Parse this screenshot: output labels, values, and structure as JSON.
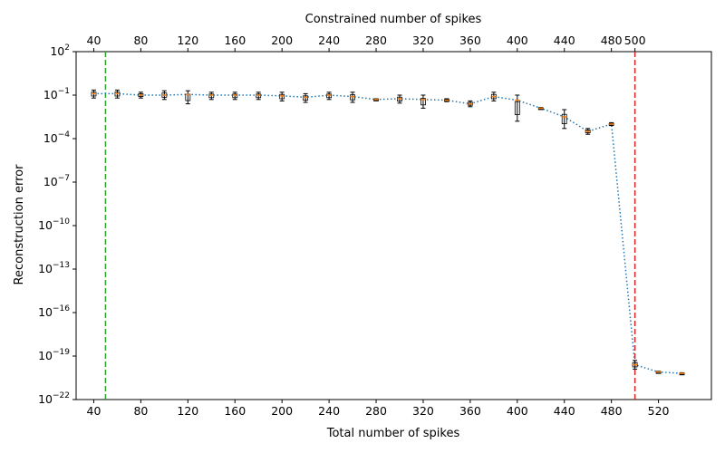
{
  "chart_data": {
    "type": "line",
    "xlabel": "Total number of spikes",
    "x2label": "Constrained number of spikes",
    "ylabel": "Reconstruction error",
    "xlim": [
      25,
      565
    ],
    "ylim_exponent": [
      -22,
      2
    ],
    "y_scale": "log",
    "bottom_ticks": [
      "40",
      "80",
      "120",
      "160",
      "200",
      "240",
      "280",
      "320",
      "360",
      "400",
      "440",
      "480",
      "520"
    ],
    "bottom_tick_values": [
      40,
      80,
      120,
      160,
      200,
      240,
      280,
      320,
      360,
      400,
      440,
      480,
      520
    ],
    "top_ticks": [
      "40",
      "80",
      "120",
      "160",
      "200",
      "240",
      "280",
      "320",
      "360",
      "400",
      "440",
      "480",
      "500"
    ],
    "top_tick_values": [
      40,
      80,
      120,
      160,
      200,
      240,
      280,
      320,
      360,
      400,
      440,
      480,
      500
    ],
    "y_ticks": [
      {
        "base": "10",
        "exp": "2",
        "value": 2
      },
      {
        "base": "10",
        "exp": "−1",
        "value": -1
      },
      {
        "base": "10",
        "exp": "−4",
        "value": -4
      },
      {
        "base": "10",
        "exp": "−7",
        "value": -7
      },
      {
        "base": "10",
        "exp": "−10",
        "value": -10
      },
      {
        "base": "10",
        "exp": "−13",
        "value": -13
      },
      {
        "base": "10",
        "exp": "−16",
        "value": -16
      },
      {
        "base": "10",
        "exp": "−19",
        "value": -19
      },
      {
        "base": "10",
        "exp": "−22",
        "value": -22
      }
    ],
    "series": [
      {
        "style": "dotted",
        "x": [
          40,
          60,
          80,
          100,
          120,
          140,
          160,
          180,
          200,
          220,
          240,
          260,
          280,
          300,
          320,
          340,
          360,
          380,
          400,
          420,
          440,
          460,
          480,
          500,
          520,
          540
        ],
        "log10_y": [
          -0.9,
          -0.9,
          -1.0,
          -1.0,
          -0.95,
          -1.0,
          -1.0,
          -1.0,
          -1.05,
          -1.15,
          -1.0,
          -1.1,
          -1.3,
          -1.25,
          -1.3,
          -1.35,
          -1.6,
          -1.1,
          -1.35,
          -1.9,
          -2.5,
          -3.5,
          -3.0,
          -19.6,
          -20.1,
          -20.2
        ],
        "log10_y_low": [
          -1.2,
          -1.2,
          -1.2,
          -1.3,
          -1.6,
          -1.3,
          -1.3,
          -1.3,
          -1.4,
          -1.5,
          -1.3,
          -1.5,
          -1.35,
          -1.55,
          -1.9,
          -1.45,
          -1.8,
          -1.4,
          -2.8,
          -1.95,
          -3.3,
          -3.7,
          -3.1,
          -19.9,
          -20.15,
          -20.25
        ],
        "log10_y_high": [
          -0.65,
          -0.65,
          -0.8,
          -0.7,
          -0.7,
          -0.8,
          -0.8,
          -0.8,
          -0.8,
          -0.9,
          -0.8,
          -0.8,
          -1.25,
          -1.0,
          -1.0,
          -1.25,
          -1.4,
          -0.8,
          -1.0,
          -1.85,
          -2.0,
          -3.3,
          -2.9,
          -19.3,
          -20.05,
          -20.15
        ]
      }
    ],
    "vlines": [
      {
        "x": 50,
        "color": "#2ca02c",
        "style": "dashed"
      },
      {
        "x": 500,
        "color": "#d62728",
        "style": "dashed"
      }
    ],
    "colors": {
      "line": "#1f77b4",
      "marker": "#ff7f0e",
      "errorbar": "#000000"
    },
    "grid": false
  }
}
